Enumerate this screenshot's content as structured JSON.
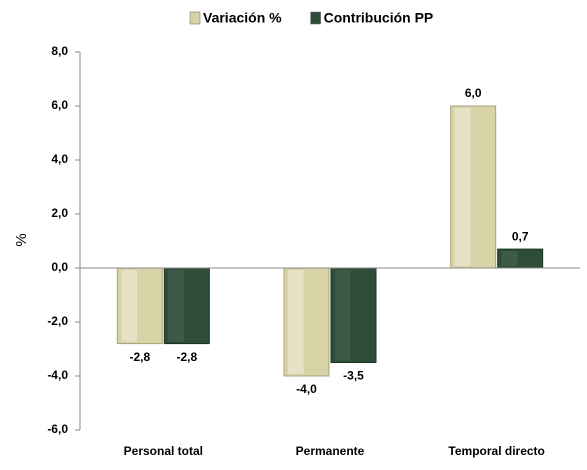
{
  "chart_data": {
    "type": "bar",
    "y_label": "%",
    "categories": [
      "Personal total",
      "Permanente",
      "Temporal directo"
    ],
    "series": [
      {
        "name": "Variación %",
        "color": "#d8d3a6",
        "values": [
          -2.8,
          -4.0,
          6.0
        ],
        "value_labels": [
          "-2,8",
          "-4,0",
          "6,0"
        ]
      },
      {
        "name": "Contribución PP",
        "color": "#2e4d38",
        "values": [
          -2.8,
          -3.5,
          0.7
        ],
        "value_labels": [
          "-2,8",
          "-3,5",
          "0,7"
        ]
      }
    ],
    "ylim": [
      -6,
      8
    ],
    "yticks": [
      {
        "value": -6,
        "label": "-6,0"
      },
      {
        "value": -4,
        "label": "-4,0"
      },
      {
        "value": -2,
        "label": "-2,0"
      },
      {
        "value": 0,
        "label": "0,0"
      },
      {
        "value": 2,
        "label": "2,0"
      },
      {
        "value": 4,
        "label": "4,0"
      },
      {
        "value": 6,
        "label": "6,0"
      },
      {
        "value": 8,
        "label": "8,0"
      }
    ],
    "legend": "top"
  }
}
